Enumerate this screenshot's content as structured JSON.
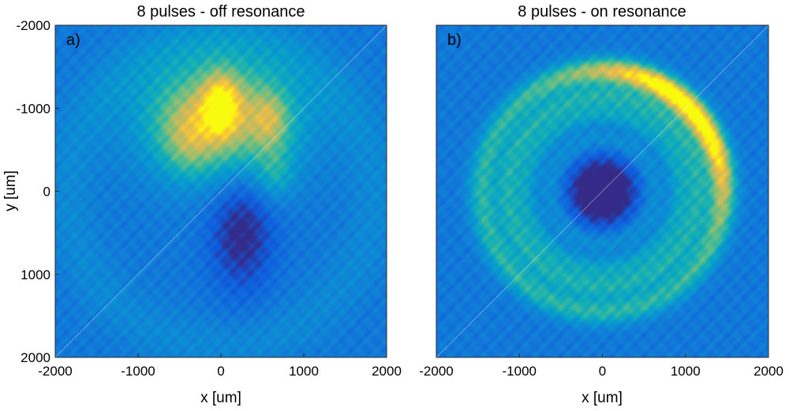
{
  "chart_data": [
    {
      "type": "heatmap",
      "title": "8 pulses - off resonance",
      "panel_label": "a)",
      "xlabel": "x [um]",
      "ylabel": "y [um]",
      "xlim": [
        -2000,
        2000
      ],
      "ylim": [
        -2000,
        2000
      ],
      "y_axis_direction": "reversed",
      "xticks": [
        -2000,
        -1000,
        0,
        1000,
        2000
      ],
      "yticks": [
        -2000,
        -1000,
        0,
        1000,
        2000
      ],
      "xtick_labels": [
        "-2000",
        "-1000",
        "0",
        "1000",
        "2000"
      ],
      "ytick_labels": [
        "-2000",
        "-1000",
        "0",
        "1000",
        "2000"
      ],
      "colormap": "parula",
      "features": [
        {
          "kind": "bright-region",
          "x": 0,
          "y": -900,
          "sx": 650,
          "sy": 500,
          "level": 0.55
        },
        {
          "kind": "bright-spot",
          "x": 0,
          "y": -1050,
          "sx": 150,
          "sy": 260,
          "level": 0.35
        },
        {
          "kind": "bright-spot",
          "x": 600,
          "y": -850,
          "sx": 150,
          "sy": 230,
          "level": 0.22
        },
        {
          "kind": "bright-spot",
          "x": -400,
          "y": -600,
          "sx": 220,
          "sy": 300,
          "level": 0.18
        },
        {
          "kind": "bright-spot",
          "x": 650,
          "y": -200,
          "sx": 170,
          "sy": 230,
          "level": 0.18
        },
        {
          "kind": "dark-region",
          "x": 250,
          "y": 500,
          "sx": 270,
          "sy": 480,
          "level": -0.3
        },
        {
          "kind": "faint-ring",
          "x": 0,
          "y": 0,
          "r": 1850,
          "w": 220,
          "level": 0.08
        }
      ]
    },
    {
      "type": "heatmap",
      "title": "8 pulses - on resonance",
      "panel_label": "b)",
      "xlabel": "x [um]",
      "ylabel": "",
      "xlim": [
        -2000,
        2000
      ],
      "ylim": [
        -2000,
        2000
      ],
      "y_axis_direction": "reversed",
      "xticks": [
        -2000,
        -1000,
        0,
        1000,
        2000
      ],
      "xtick_labels": [
        "-2000",
        "-1000",
        "0",
        "1000",
        "2000"
      ],
      "colormap": "parula",
      "features": [
        {
          "kind": "dark-spot",
          "x": 0,
          "y": 0,
          "r": 330,
          "level": -0.55
        },
        {
          "kind": "ring",
          "x": 0,
          "y": 0,
          "r": 620,
          "w": 90,
          "level": 0.12
        },
        {
          "kind": "ring",
          "x": 0,
          "y": 0,
          "r": 930,
          "w": 100,
          "level": 0.2
        },
        {
          "kind": "ring",
          "x": 0,
          "y": 0,
          "r": 1150,
          "w": 100,
          "level": 0.25
        },
        {
          "kind": "ring",
          "x": 0,
          "y": 0,
          "r": 1450,
          "w": 120,
          "level": 0.3
        },
        {
          "kind": "bright-arc",
          "x": 0,
          "y": 0,
          "r": 1450,
          "angle_deg": -45,
          "spread_deg": 35,
          "level": 0.55
        }
      ]
    }
  ]
}
